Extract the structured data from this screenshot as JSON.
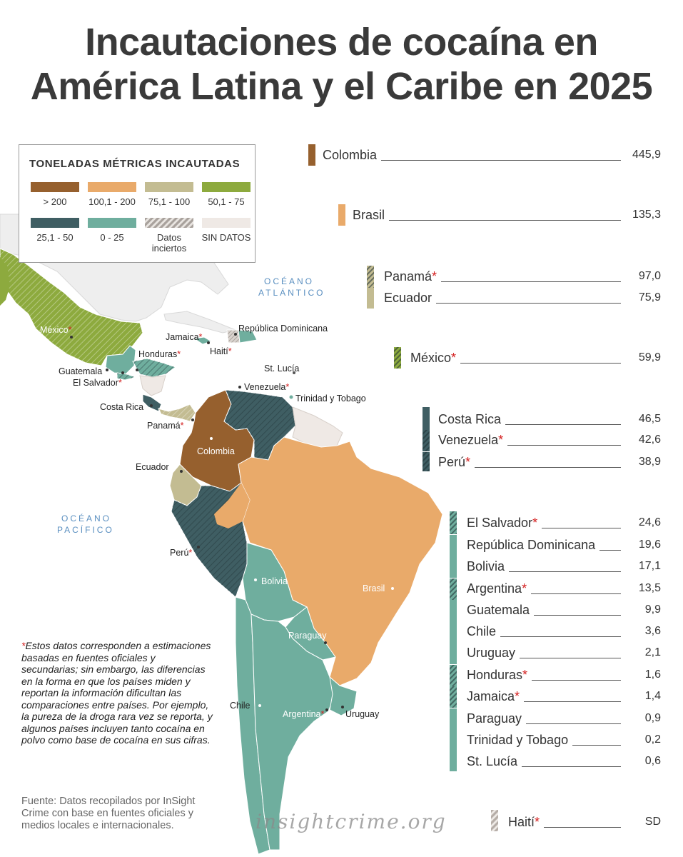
{
  "title": {
    "line1": "Incautaciones de cocaína en",
    "line2": "América Latina y el Caribe en 2025"
  },
  "legend": {
    "title": "TONELADAS MÉTRICAS INCAUTADAS",
    "items": [
      {
        "label": "> 200",
        "color": "#96602e"
      },
      {
        "label": "100,1 - 200",
        "color": "#e9aa6a"
      },
      {
        "label": "75,1 - 100",
        "color": "#c3bc92"
      },
      {
        "label": "50,1 - 75",
        "color": "#8daa3e"
      },
      {
        "label": "25,1 - 50",
        "color": "#3f5e63"
      },
      {
        "label": "0 - 25",
        "color": "#6fae9e"
      },
      {
        "label": "Datos inciertos",
        "pattern": "hatched"
      },
      {
        "label": "SIN DATOS",
        "color": "#efe9e5"
      }
    ]
  },
  "map": {
    "oceans": {
      "atlantic_1": "OCÉANO",
      "atlantic_2": "ATLÁNTICO",
      "pacific_1": "OCÉANO",
      "pacific_2": "PACÍFICO"
    },
    "labels": {
      "mexico": "México",
      "jamaica": "Jamaica",
      "republica_dominicana": "República Dominicana",
      "haiti": "Haití",
      "honduras": "Honduras",
      "guatemala": "Guatemala",
      "el_salvador": "El Salvador",
      "st_lucia": "St. Lucía",
      "venezuela": "Venezuela",
      "trinidad": "Trinidad y Tobago",
      "costa_rica": "Costa Rica",
      "panama": "Panamá",
      "colombia": "Colombia",
      "ecuador": "Ecuador",
      "peru": "Perú",
      "bolivia": "Bolivia",
      "brasil": "Brasil",
      "paraguay": "Paraguay",
      "chile": "Chile",
      "argentina": "Argentina",
      "uruguay": "Uruguay"
    },
    "asterisk": "*"
  },
  "chart_data": {
    "type": "table",
    "groups": [
      {
        "range": "> 200",
        "color": "#96602e",
        "rows": [
          {
            "country": "Colombia",
            "value": "445,9",
            "uncertain": false
          }
        ]
      },
      {
        "range": "100,1 - 200",
        "color": "#e9aa6a",
        "rows": [
          {
            "country": "Brasil",
            "value": "135,3",
            "uncertain": false
          }
        ]
      },
      {
        "range": "75,1 - 100",
        "color": "#c3bc92",
        "rows": [
          {
            "country": "Panamá",
            "value": "97,0",
            "uncertain": true
          },
          {
            "country": "Ecuador",
            "value": "75,9",
            "uncertain": false
          }
        ]
      },
      {
        "range": "50,1 - 75",
        "color": "#8daa3e",
        "rows": [
          {
            "country": "México",
            "value": "59,9",
            "uncertain": true
          }
        ]
      },
      {
        "range": "25,1 - 50",
        "color": "#3f5e63",
        "rows": [
          {
            "country": "Costa Rica",
            "value": "46,5",
            "uncertain": false
          },
          {
            "country": "Venezuela",
            "value": "42,6",
            "uncertain": true
          },
          {
            "country": "Perú",
            "value": "38,9",
            "uncertain": true
          }
        ]
      },
      {
        "range": "0 - 25",
        "color": "#6fae9e",
        "rows": [
          {
            "country": "El Salvador",
            "value": "24,6",
            "uncertain": true
          },
          {
            "country": "República Dominicana",
            "value": "19,6",
            "uncertain": false
          },
          {
            "country": "Bolivia",
            "value": "17,1",
            "uncertain": false
          },
          {
            "country": "Argentina",
            "value": "13,5",
            "uncertain": true
          },
          {
            "country": "Guatemala",
            "value": "9,9",
            "uncertain": false
          },
          {
            "country": "Chile",
            "value": "3,6",
            "uncertain": false
          },
          {
            "country": "Uruguay",
            "value": "2,1",
            "uncertain": false
          },
          {
            "country": "Honduras",
            "value": "1,6",
            "uncertain": true
          },
          {
            "country": "Jamaica",
            "value": "1,4",
            "uncertain": true
          },
          {
            "country": "Paraguay",
            "value": "0,9",
            "uncertain": false
          },
          {
            "country": "Trinidad y Tobago",
            "value": "0,2",
            "uncertain": false
          },
          {
            "country": "St. Lucía",
            "value": "0,6",
            "uncertain": false
          }
        ]
      },
      {
        "range": "Datos inciertos",
        "color": "#c8bfb8",
        "rows": [
          {
            "country": "Haití",
            "value": "SD",
            "uncertain": true
          }
        ]
      }
    ]
  },
  "note": {
    "asterisk": "*",
    "text": "Estos datos corresponden a estimaciones basadas en fuentes oficiales y secundarias; sin embargo, las diferencias en la forma en que los países miden y reportan la información dificultan las comparaciones entre países. Por ejemplo, la pureza de la droga rara vez se reporta, y algunos países incluyen tanto cocaína en polvo como base de cocaína en sus cifras."
  },
  "source": "Fuente: Datos recopilados por InSight Crime con base en fuentes oficiales y medios locales e internacionales.",
  "brand": "insightcrime.org"
}
